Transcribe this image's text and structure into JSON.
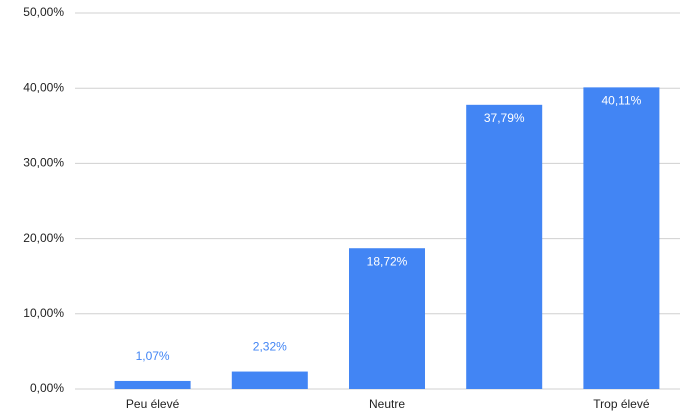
{
  "chart_data": {
    "type": "bar",
    "categories": [
      "Peu élevé",
      null,
      "Neutre",
      null,
      "Trop élevé"
    ],
    "values": [
      1.07,
      2.32,
      18.72,
      37.79,
      40.11
    ],
    "value_labels": [
      "1,07%",
      "2,32%",
      "18,72%",
      "37,79%",
      "40,11%"
    ],
    "color": "#4285f4",
    "ylim": [
      0,
      50
    ],
    "yticks": [
      {
        "value": 0,
        "label": "0,00%"
      },
      {
        "value": 10,
        "label": "10,00%"
      },
      {
        "value": 20,
        "label": "20,00%"
      },
      {
        "value": 30,
        "label": "30,00%"
      },
      {
        "value": 40,
        "label": "40,00%"
      },
      {
        "value": 50,
        "label": "50,00%"
      }
    ],
    "grid": true
  }
}
